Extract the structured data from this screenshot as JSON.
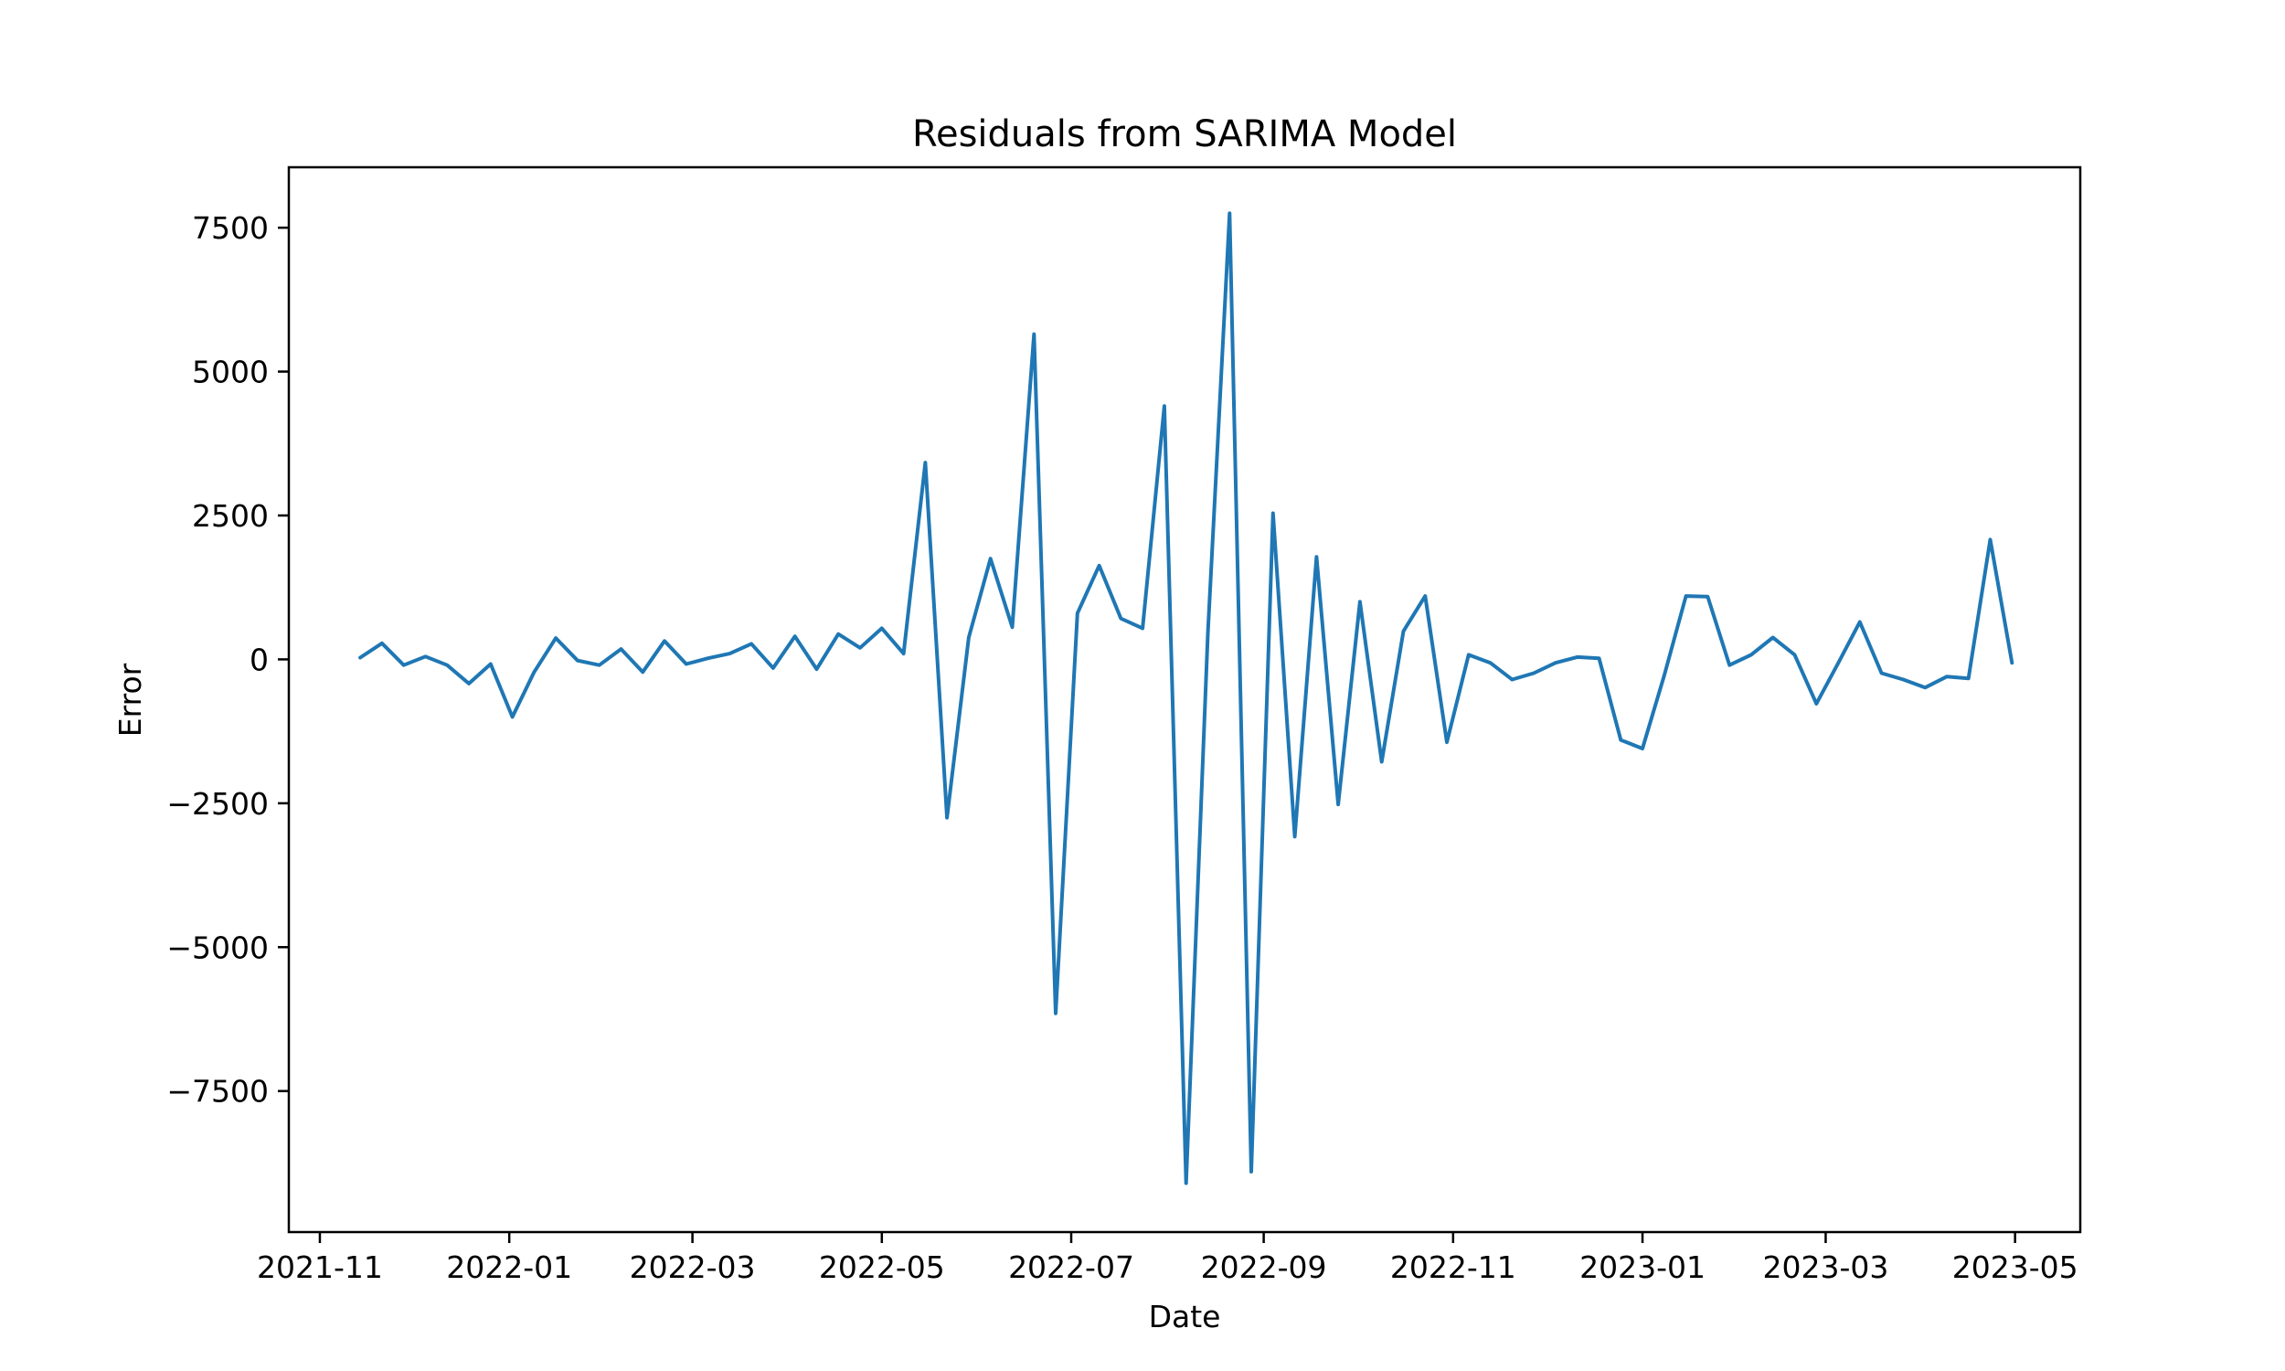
{
  "chart_data": {
    "type": "line",
    "title": "Residuals from SARIMA Model",
    "xlabel": "Date",
    "ylabel": "Error",
    "x_axis_type": "date",
    "x_range": [
      "2021-10-22",
      "2023-05-22"
    ],
    "x_ticks": [
      "2021-11-01",
      "2022-01-01",
      "2022-03-01",
      "2022-05-01",
      "2022-07-01",
      "2022-09-01",
      "2022-11-01",
      "2023-01-01",
      "2023-03-01",
      "2023-05-01"
    ],
    "x_tick_labels": [
      "2021-11",
      "2022-01",
      "2022-03",
      "2022-05",
      "2022-07",
      "2022-09",
      "2022-11",
      "2023-01",
      "2023-03",
      "2023-05"
    ],
    "ylim": [
      -9950,
      8550
    ],
    "y_ticks": [
      7500,
      5000,
      2500,
      0,
      -2500,
      -5000,
      -7500
    ],
    "y_tick_labels": [
      "7500",
      "5000",
      "2500",
      "0",
      "−2500",
      "−5000",
      "−7500"
    ],
    "grid": false,
    "legend": "none",
    "line_color": "#1f77b4",
    "series": [
      {
        "x": [
          "2021-11-14",
          "2021-11-21",
          "2021-11-28",
          "2021-12-05",
          "2021-12-12",
          "2021-12-19",
          "2021-12-26",
          "2022-01-02",
          "2022-01-09",
          "2022-01-16",
          "2022-01-23",
          "2022-01-30",
          "2022-02-06",
          "2022-02-13",
          "2022-02-20",
          "2022-02-27",
          "2022-03-06",
          "2022-03-13",
          "2022-03-20",
          "2022-03-27",
          "2022-04-03",
          "2022-04-10",
          "2022-04-17",
          "2022-04-24",
          "2022-05-01",
          "2022-05-08",
          "2022-05-15",
          "2022-05-22",
          "2022-05-29",
          "2022-06-05",
          "2022-06-12",
          "2022-06-19",
          "2022-06-26",
          "2022-07-03",
          "2022-07-10",
          "2022-07-17",
          "2022-07-24",
          "2022-07-31",
          "2022-08-07",
          "2022-08-14",
          "2022-08-21",
          "2022-08-28",
          "2022-09-04",
          "2022-09-11",
          "2022-09-18",
          "2022-09-25",
          "2022-10-02",
          "2022-10-09",
          "2022-10-16",
          "2022-10-23",
          "2022-10-30",
          "2022-11-06",
          "2022-11-13",
          "2022-11-20",
          "2022-11-27",
          "2022-12-04",
          "2022-12-11",
          "2022-12-18",
          "2022-12-25",
          "2023-01-01",
          "2023-01-08",
          "2023-01-15",
          "2023-01-22",
          "2023-01-29",
          "2023-02-05",
          "2023-02-12",
          "2023-02-19",
          "2023-02-26",
          "2023-03-05",
          "2023-03-12",
          "2023-03-19",
          "2023-03-26",
          "2023-04-02",
          "2023-04-09",
          "2023-04-16",
          "2023-04-23",
          "2023-04-30"
        ],
        "values": [
          30,
          280,
          -100,
          50,
          -100,
          -420,
          -80,
          -1000,
          -220,
          370,
          -20,
          -100,
          180,
          -220,
          320,
          -80,
          20,
          100,
          270,
          -150,
          400,
          -170,
          440,
          200,
          540,
          100,
          3420,
          -2750,
          380,
          1750,
          560,
          5650,
          -6150,
          800,
          1630,
          710,
          540,
          4400,
          -9100,
          450,
          7750,
          -8900,
          2540,
          -3080,
          1780,
          -2520,
          1000,
          -1780,
          490,
          1100,
          -1440,
          80,
          -60,
          -350,
          -240,
          -60,
          40,
          20,
          -1400,
          -1550,
          -280,
          1100,
          1090,
          -100,
          80,
          380,
          80,
          -770,
          -70,
          650,
          -240,
          -350,
          -490,
          -300,
          -330,
          2080,
          -60
        ]
      }
    ]
  }
}
